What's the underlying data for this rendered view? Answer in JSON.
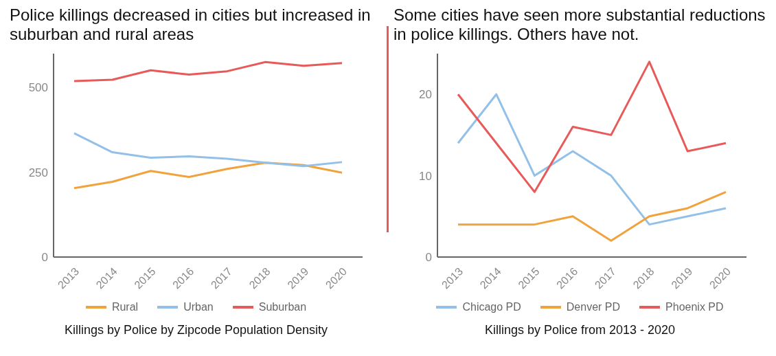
{
  "chart_data": [
    {
      "type": "line",
      "title": "Police killings decreased in cities but increased in suburban and rural areas",
      "xlabel": "Killings by Police by Zipcode Population Density",
      "categories": [
        "2013",
        "2014",
        "2015",
        "2016",
        "2017",
        "2018",
        "2019",
        "2020"
      ],
      "ylim": [
        0,
        600
      ],
      "yticks": [
        0,
        250,
        500
      ],
      "grid": false,
      "legend": "bottom",
      "marker": "none",
      "line_style": "solid",
      "series": [
        {
          "name": "Rural",
          "color": "#f0a23c",
          "values": [
            203,
            222,
            254,
            236,
            260,
            278,
            271,
            249
          ]
        },
        {
          "name": "Urban",
          "color": "#93c0e8",
          "values": [
            365,
            309,
            293,
            297,
            290,
            278,
            268,
            280
          ]
        },
        {
          "name": "Suburban",
          "color": "#e85a5a",
          "values": [
            519,
            523,
            551,
            538,
            548,
            575,
            564,
            572
          ]
        }
      ]
    },
    {
      "type": "line",
      "title": "Some cities have seen more substantial reductions in police killings. Others have not.",
      "xlabel": "Killings by Police from 2013 - 2020",
      "categories": [
        "2013",
        "2014",
        "2015",
        "2016",
        "2017",
        "2018",
        "2019",
        "2020"
      ],
      "ylim": [
        0,
        25
      ],
      "yticks": [
        0,
        10,
        20
      ],
      "grid": false,
      "legend": "bottom",
      "marker": "none",
      "line_style": "solid",
      "series": [
        {
          "name": "Chicago PD",
          "color": "#93c0e8",
          "values": [
            14,
            20,
            10,
            13,
            10,
            4,
            5,
            6
          ]
        },
        {
          "name": "Denver PD",
          "color": "#f0a23c",
          "values": [
            4,
            4,
            4,
            5,
            2,
            5,
            6,
            8
          ]
        },
        {
          "name": "Phoenix PD",
          "color": "#e85a5a",
          "values": [
            20,
            14,
            8,
            16,
            15,
            24,
            13,
            14
          ]
        }
      ]
    }
  ]
}
